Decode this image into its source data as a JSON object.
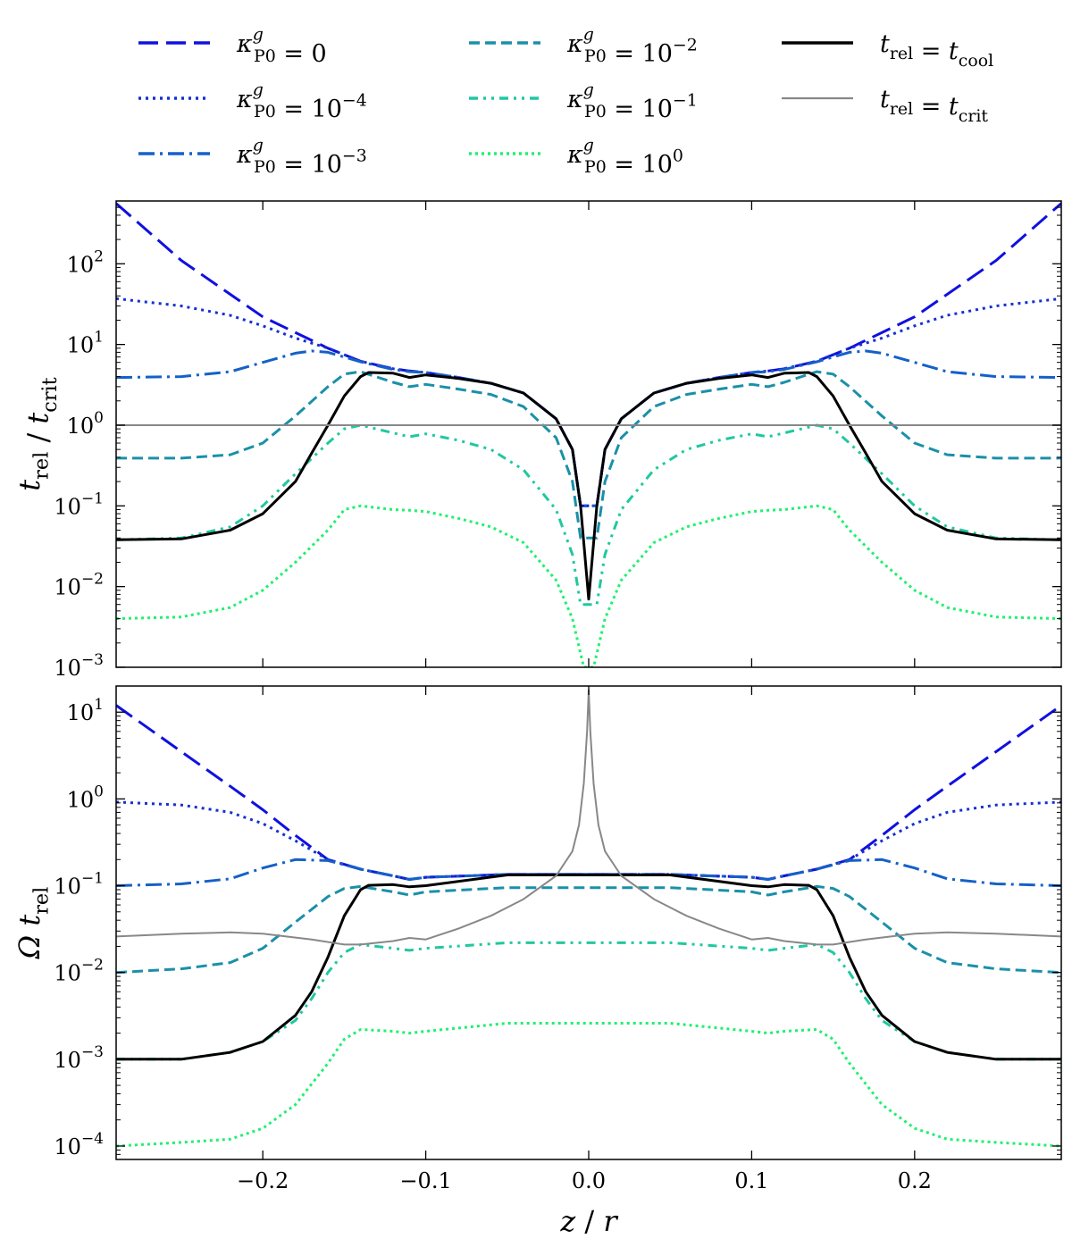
{
  "chart_data": [
    {
      "type": "line",
      "panel": "top",
      "xlabel": "",
      "ylabel": "t_rel / t_crit",
      "yscale": "log",
      "xlim": [
        -0.29,
        0.29
      ],
      "ylim": [
        0.001,
        600
      ],
      "xticks": [
        -0.2,
        -0.1,
        0.0,
        0.1,
        0.2
      ],
      "yticks": [
        {
          "value": 0.001,
          "base": "10",
          "exp": "−3"
        },
        {
          "value": 0.01,
          "base": "10",
          "exp": "−2"
        },
        {
          "value": 0.1,
          "base": "10",
          "exp": "−1"
        },
        {
          "value": 1,
          "base": "10",
          "exp": "0"
        },
        {
          "value": 10,
          "base": "10",
          "exp": "1"
        },
        {
          "value": 100,
          "base": "10",
          "exp": "2"
        }
      ],
      "symmetric_about_zero": true,
      "series": [
        {
          "name": "κ_P0^g = 0",
          "style": "k0",
          "half_x": [
            0.005,
            0.01,
            0.02,
            0.04,
            0.06,
            0.08,
            0.1,
            0.11,
            0.12,
            0.14,
            0.16,
            0.2,
            0.25,
            0.29
          ],
          "half_y": [
            0.1,
            0.5,
            1.2,
            2.5,
            3.3,
            3.9,
            4.5,
            4.7,
            5.0,
            6.2,
            9,
            22,
            110,
            560
          ]
        },
        {
          "name": "κ_P0^g = 10^-4",
          "style": "k4",
          "half_x": [
            0.005,
            0.01,
            0.02,
            0.04,
            0.06,
            0.08,
            0.1,
            0.11,
            0.12,
            0.14,
            0.16,
            0.18,
            0.2,
            0.22,
            0.25,
            0.29
          ],
          "half_y": [
            0.1,
            0.5,
            1.2,
            2.5,
            3.3,
            3.9,
            4.5,
            4.7,
            5.0,
            6.2,
            9,
            12,
            17,
            23,
            30,
            37
          ]
        },
        {
          "name": "κ_P0^g = 10^-3",
          "style": "k3",
          "half_x": [
            0.005,
            0.01,
            0.02,
            0.04,
            0.06,
            0.08,
            0.1,
            0.11,
            0.12,
            0.14,
            0.16,
            0.17,
            0.18,
            0.2,
            0.22,
            0.25,
            0.29
          ],
          "half_y": [
            0.1,
            0.5,
            1.2,
            2.5,
            3.3,
            3.9,
            4.5,
            4.6,
            4.9,
            6.1,
            8.0,
            8.3,
            7.8,
            6.0,
            4.6,
            4.0,
            3.9
          ]
        },
        {
          "name": "κ_P0^g = 10^-2",
          "style": "k2",
          "half_x": [
            0.005,
            0.01,
            0.02,
            0.04,
            0.06,
            0.08,
            0.1,
            0.11,
            0.12,
            0.14,
            0.15,
            0.16,
            0.18,
            0.2,
            0.22,
            0.25,
            0.29
          ],
          "half_y": [
            0.04,
            0.2,
            0.7,
            1.7,
            2.4,
            2.8,
            3.2,
            3.0,
            3.4,
            4.6,
            4.3,
            3.0,
            1.3,
            0.6,
            0.43,
            0.39,
            0.39
          ]
        },
        {
          "name": "κ_P0^g = 10^-1",
          "style": "k1",
          "half_x": [
            0.005,
            0.01,
            0.02,
            0.04,
            0.06,
            0.08,
            0.1,
            0.11,
            0.12,
            0.14,
            0.15,
            0.16,
            0.18,
            0.2,
            0.22,
            0.25,
            0.29
          ],
          "half_y": [
            0.006,
            0.025,
            0.09,
            0.28,
            0.5,
            0.65,
            0.78,
            0.72,
            0.8,
            1.0,
            0.9,
            0.6,
            0.25,
            0.1,
            0.055,
            0.04,
            0.038
          ]
        },
        {
          "name": "κ_P0^g = 10^0",
          "style": "k00",
          "half_x": [
            0.003,
            0.01,
            0.02,
            0.04,
            0.06,
            0.08,
            0.1,
            0.11,
            0.12,
            0.14,
            0.15,
            0.16,
            0.18,
            0.2,
            0.22,
            0.25,
            0.29
          ],
          "half_y": [
            0.001,
            0.004,
            0.012,
            0.035,
            0.055,
            0.07,
            0.085,
            0.088,
            0.09,
            0.1,
            0.09,
            0.05,
            0.02,
            0.009,
            0.0055,
            0.0042,
            0.004
          ]
        },
        {
          "name": "t_rel = t_cool",
          "style": "cool",
          "half_x": [
            0.0,
            0.005,
            0.01,
            0.02,
            0.04,
            0.06,
            0.08,
            0.1,
            0.11,
            0.12,
            0.135,
            0.14,
            0.15,
            0.16,
            0.17,
            0.18,
            0.2,
            0.22,
            0.25,
            0.29
          ],
          "half_y": [
            0.007,
            0.1,
            0.5,
            1.2,
            2.5,
            3.3,
            3.8,
            4.2,
            3.9,
            4.4,
            4.5,
            4.0,
            2.3,
            1.0,
            0.45,
            0.2,
            0.08,
            0.05,
            0.039,
            0.038
          ]
        },
        {
          "name": "t_rel = t_crit",
          "style": "crit",
          "half_x": [
            0.0,
            0.29
          ],
          "half_y": [
            1,
            1
          ]
        }
      ]
    },
    {
      "type": "line",
      "panel": "bottom",
      "xlabel": "z / r",
      "ylabel": "Ω t_rel",
      "yscale": "log",
      "xlim": [
        -0.29,
        0.29
      ],
      "ylim": [
        7e-05,
        20
      ],
      "xticks": [
        -0.2,
        -0.1,
        0.0,
        0.1,
        0.2
      ],
      "yticks": [
        {
          "value": 0.0001,
          "base": "10",
          "exp": "−4"
        },
        {
          "value": 0.001,
          "base": "10",
          "exp": "−3"
        },
        {
          "value": 0.01,
          "base": "10",
          "exp": "−2"
        },
        {
          "value": 0.1,
          "base": "10",
          "exp": "−1"
        },
        {
          "value": 1,
          "base": "10",
          "exp": "0"
        },
        {
          "value": 10,
          "base": "10",
          "exp": "1"
        }
      ],
      "symmetric_about_zero": true,
      "series": [
        {
          "name": "κ_P0^g = 0",
          "style": "k0",
          "half_x": [
            0.0,
            0.05,
            0.1,
            0.11,
            0.12,
            0.14,
            0.16,
            0.18,
            0.2,
            0.22,
            0.25,
            0.29
          ],
          "half_y": [
            0.135,
            0.135,
            0.125,
            0.118,
            0.13,
            0.155,
            0.2,
            0.38,
            0.75,
            1.4,
            3.5,
            12
          ]
        },
        {
          "name": "κ_P0^g = 10^-4",
          "style": "k4",
          "half_x": [
            0.0,
            0.05,
            0.1,
            0.11,
            0.12,
            0.14,
            0.16,
            0.18,
            0.2,
            0.22,
            0.25,
            0.29
          ],
          "half_y": [
            0.135,
            0.135,
            0.125,
            0.118,
            0.13,
            0.155,
            0.2,
            0.33,
            0.52,
            0.7,
            0.85,
            0.92
          ]
        },
        {
          "name": "κ_P0^g = 10^-3",
          "style": "k3",
          "half_x": [
            0.0,
            0.05,
            0.1,
            0.11,
            0.12,
            0.14,
            0.16,
            0.18,
            0.2,
            0.22,
            0.25,
            0.29
          ],
          "half_y": [
            0.135,
            0.135,
            0.125,
            0.118,
            0.13,
            0.155,
            0.195,
            0.2,
            0.16,
            0.12,
            0.105,
            0.1
          ]
        },
        {
          "name": "κ_P0^g = 10^-2",
          "style": "k2",
          "half_x": [
            0.0,
            0.05,
            0.1,
            0.11,
            0.12,
            0.14,
            0.15,
            0.16,
            0.18,
            0.2,
            0.22,
            0.25,
            0.29
          ],
          "half_y": [
            0.095,
            0.095,
            0.085,
            0.078,
            0.085,
            0.098,
            0.093,
            0.075,
            0.038,
            0.019,
            0.013,
            0.011,
            0.01
          ]
        },
        {
          "name": "κ_P0^g = 10^-1",
          "style": "k1",
          "half_x": [
            0.0,
            0.05,
            0.1,
            0.11,
            0.12,
            0.14,
            0.15,
            0.16,
            0.17,
            0.18,
            0.2,
            0.22,
            0.25,
            0.29
          ],
          "half_y": [
            0.022,
            0.022,
            0.019,
            0.018,
            0.019,
            0.021,
            0.017,
            0.01,
            0.005,
            0.0028,
            0.0016,
            0.0012,
            0.001,
            0.001
          ]
        },
        {
          "name": "κ_P0^g = 10^0",
          "style": "k00",
          "half_x": [
            0.0,
            0.05,
            0.1,
            0.11,
            0.12,
            0.14,
            0.15,
            0.16,
            0.18,
            0.2,
            0.22,
            0.25,
            0.29
          ],
          "half_y": [
            0.0026,
            0.0026,
            0.0021,
            0.002,
            0.0021,
            0.0022,
            0.0017,
            0.0009,
            0.0003,
            0.00016,
            0.00012,
            0.00011,
            0.0001
          ]
        },
        {
          "name": "t_rel = t_cool",
          "style": "cool",
          "half_x": [
            0.0,
            0.05,
            0.1,
            0.11,
            0.12,
            0.135,
            0.14,
            0.15,
            0.16,
            0.17,
            0.18,
            0.2,
            0.22,
            0.25,
            0.29
          ],
          "half_y": [
            0.133,
            0.133,
            0.1,
            0.097,
            0.103,
            0.101,
            0.09,
            0.045,
            0.015,
            0.006,
            0.0032,
            0.0016,
            0.0012,
            0.001,
            0.001
          ]
        },
        {
          "name": "t_rel = t_crit",
          "style": "crit",
          "half_x": [
            0.0,
            0.001,
            0.003,
            0.006,
            0.01,
            0.02,
            0.04,
            0.06,
            0.08,
            0.1,
            0.11,
            0.12,
            0.14,
            0.15,
            0.17,
            0.2,
            0.22,
            0.25,
            0.29
          ],
          "half_y": [
            18,
            6,
            1.5,
            0.5,
            0.25,
            0.13,
            0.07,
            0.045,
            0.032,
            0.024,
            0.025,
            0.023,
            0.021,
            0.021,
            0.024,
            0.028,
            0.029,
            0.028,
            0.026
          ]
        }
      ]
    }
  ],
  "legend": {
    "placement": "top",
    "columns": [
      [
        {
          "style": "k0",
          "label": "κ_P0^g = 0"
        },
        {
          "style": "k4",
          "label": "κ_P0^g = 10^−4"
        },
        {
          "style": "k3",
          "label": "κ_P0^g = 10^−3"
        }
      ],
      [
        {
          "style": "k2",
          "label": "κ_P0^g = 10^−2"
        },
        {
          "style": "k1",
          "label": "κ_P0^g = 10^−1"
        },
        {
          "style": "k00",
          "label": "κ_P0^g = 10^0"
        }
      ],
      [
        {
          "style": "cool",
          "label": "t_rel = t_cool"
        },
        {
          "style": "crit",
          "label": "t_rel = t_crit"
        }
      ]
    ]
  },
  "styles": {
    "k0": {
      "color": "#1010e0",
      "dash": "22,9"
    },
    "k4": {
      "color": "#1530d0",
      "dash": "3,5"
    },
    "k3": {
      "color": "#1560c8",
      "dash": "18,6,3,6"
    },
    "k2": {
      "color": "#1a90a8",
      "dash": "12,6"
    },
    "k1": {
      "color": "#20c8a0",
      "dash": "10,6,3,6,3,6"
    },
    "k00": {
      "color": "#20f070",
      "dash": "3,4"
    },
    "cool": {
      "color": "#000000",
      "dash": ""
    },
    "crit": {
      "color": "#888888",
      "dash": ""
    }
  }
}
